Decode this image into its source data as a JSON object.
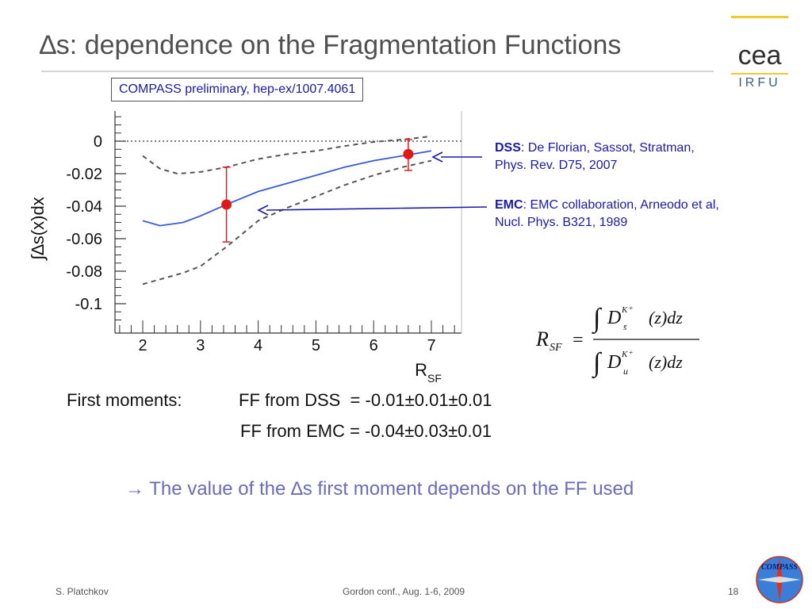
{
  "slide": {
    "title": "∆s: dependence on the Fragmentation Functions",
    "logo_text_top": "cea",
    "logo_text_bottom": "IRFU",
    "compass_label": "COMPASS preliminary, hep-ex/1007.4061",
    "references": [
      {
        "key": "DSS",
        "text": ": De Florian, Sassot, Stratman,",
        "text2": "Phys. Rev. D75, 2007"
      },
      {
        "key": "EMC",
        "text": ": EMC collaboration, Arneodo et al,",
        "text2": "Nucl. Phys. B321, 1989"
      }
    ],
    "formula": {
      "lhs": "R",
      "lhs_sub": "SF",
      "equals": "=",
      "num_D": "D",
      "num_sup": "K⁺",
      "num_sub": "s̄",
      "den_D": "D",
      "den_sup": "K⁺",
      "den_sub": "u",
      "tail": "(z)dz"
    },
    "moments": {
      "label": "First moments:",
      "line1": "FF from DSS  = -0.01±0.01±0.01",
      "line2": "FF from EMC = -0.04±0.03±0.01"
    },
    "conclusion": "→ The value of the ∆s first moment depends on the FF used",
    "footer": {
      "author": "S. Platchkov",
      "conference": "Gordon conf., Aug. 1-6, 2009",
      "page": "18"
    },
    "compass_logo_text": "COMPASS",
    "colors": {
      "title": "#505050",
      "blue_text": "#1a1aa8",
      "curve": "#3a5ad6",
      "point": "#e01818",
      "conclusion": "#6b6bb8",
      "logo_yellow": "#f2c830"
    }
  },
  "chart_data": {
    "type": "line",
    "xlabel": "R_SF",
    "ylabel": "∫∆s(x)dx",
    "xlim": [
      1.6,
      7.6
    ],
    "ylim": [
      -0.115,
      0.018
    ],
    "x_ticks": [
      2,
      3,
      4,
      5,
      6,
      7
    ],
    "y_ticks": [
      0,
      -0.02,
      -0.04,
      -0.06,
      -0.08,
      -0.1
    ],
    "y_tick_labels": [
      "0",
      "-0.02",
      "-0.04",
      "-0.06",
      "-0.08",
      "-0.1"
    ],
    "grid": false,
    "reference_line": {
      "y": 0,
      "style": "dotted"
    },
    "series": [
      {
        "style": "solid",
        "x": [
          2.0,
          2.3,
          2.7,
          3.0,
          3.45,
          4.0,
          4.5,
          5.0,
          5.5,
          6.0,
          6.5,
          7.0
        ],
        "y": [
          -0.049,
          -0.052,
          -0.05,
          -0.046,
          -0.039,
          -0.031,
          -0.026,
          -0.021,
          -0.016,
          -0.012,
          -0.009,
          -0.006
        ]
      },
      {
        "style": "dashed",
        "x": [
          2.0,
          2.3,
          2.6,
          3.0,
          3.45,
          4.0,
          4.5,
          5.0,
          5.5,
          6.0,
          6.5,
          7.0
        ],
        "y": [
          -0.009,
          -0.017,
          -0.02,
          -0.019,
          -0.016,
          -0.011,
          -0.008,
          -0.006,
          -0.003,
          -0.0005,
          0.001,
          0.003
        ]
      },
      {
        "style": "dashed",
        "x": [
          2.0,
          2.3,
          2.7,
          3.0,
          3.45,
          4.0,
          4.5,
          5.0,
          5.5,
          6.0,
          6.5,
          7.0
        ],
        "y": [
          -0.088,
          -0.085,
          -0.081,
          -0.077,
          -0.065,
          -0.049,
          -0.041,
          -0.034,
          -0.027,
          -0.021,
          -0.016,
          -0.012
        ]
      }
    ],
    "points": [
      {
        "x": 3.45,
        "y": -0.039,
        "y_low": -0.062,
        "y_high": -0.016
      },
      {
        "x": 6.6,
        "y": -0.008,
        "y_low": -0.018,
        "y_high": 0.001
      }
    ]
  }
}
